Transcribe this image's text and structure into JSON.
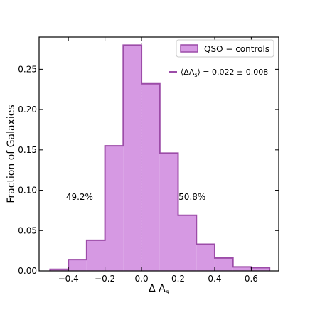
{
  "chart_data": {
    "type": "bar",
    "subtype": "histogram",
    "xlabel": "Δ A_s",
    "ylabel": "Fraction of Galaxies",
    "xlim": [
      -0.56,
      0.75
    ],
    "ylim": [
      0,
      0.29
    ],
    "xticks": [
      "−0.4",
      "−0.2",
      "0.0",
      "0.2",
      "0.4",
      "0.6"
    ],
    "xtick_values": [
      -0.4,
      -0.2,
      0.0,
      0.2,
      0.4,
      0.6
    ],
    "yticks": [
      "0.00",
      "0.05",
      "0.10",
      "0.15",
      "0.20",
      "0.25"
    ],
    "ytick_values": [
      0.0,
      0.05,
      0.1,
      0.15,
      0.2,
      0.25
    ],
    "bin_edges": [
      -0.5,
      -0.4,
      -0.3,
      -0.2,
      -0.1,
      0.0,
      0.1,
      0.2,
      0.3,
      0.4,
      0.5,
      0.6,
      0.7
    ],
    "series": [
      {
        "name": "QSO − controls",
        "values": [
          0.002,
          0.014,
          0.038,
          0.155,
          0.28,
          0.232,
          0.146,
          0.069,
          0.033,
          0.016,
          0.005,
          0.004
        ],
        "fill": "#d699e3",
        "edge": "#9c4ca8"
      }
    ],
    "mean_label": "⟨ΔA_s⟩ = 0.022 ± 0.008",
    "vline_x": 0.0,
    "vline_color": "#999999",
    "annotations": [
      {
        "text": "49.2%",
        "x": -0.3,
        "y": 0.088
      },
      {
        "text": "50.8%",
        "x": 0.3,
        "y": 0.088
      }
    ],
    "legend_position": "top-right",
    "grid": false
  }
}
